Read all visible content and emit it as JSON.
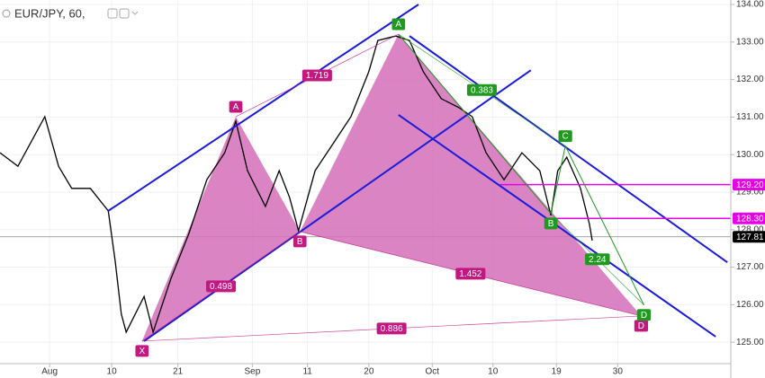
{
  "chart_data": {
    "type": "line",
    "title": "EUR/JPY, 60,",
    "xlim": [
      0,
      106
    ],
    "ylim": [
      124.43,
      134.12
    ],
    "xticks": [
      {
        "value": 7.2,
        "label": "Aug"
      },
      {
        "value": 16.2,
        "label": "10"
      },
      {
        "value": 25.8,
        "label": "21"
      },
      {
        "value": 36.6,
        "label": "Sep"
      },
      {
        "value": 44.6,
        "label": "11"
      },
      {
        "value": 53.5,
        "label": "20"
      },
      {
        "value": 62.7,
        "label": "Oct"
      },
      {
        "value": 71.5,
        "label": "10"
      },
      {
        "value": 80.7,
        "label": "19"
      },
      {
        "value": 89.6,
        "label": "30"
      }
    ],
    "yticks": [
      {
        "value": 125,
        "label": "125.00"
      },
      {
        "value": 126,
        "label": "126.00"
      },
      {
        "value": 127,
        "label": "127.00"
      },
      {
        "value": 128,
        "label": "128.00"
      },
      {
        "value": 129,
        "label": "129.00"
      },
      {
        "value": 130,
        "label": "130.00"
      },
      {
        "value": 131,
        "label": "131.00"
      },
      {
        "value": 132,
        "label": "132.00"
      },
      {
        "value": 133,
        "label": "133.00"
      },
      {
        "value": 134,
        "label": "134.00"
      }
    ],
    "x": [
      0,
      2.6,
      6.5,
      8.5,
      10.4,
      13.1,
      15.7,
      16.7,
      17.6,
      18.3,
      20.9,
      22.2,
      24.8,
      27.4,
      30.0,
      32.6,
      34.2,
      35.9,
      38.5,
      40.5,
      42.0,
      43.3,
      45.7,
      48.3,
      50.9,
      53.5,
      54.8,
      57.4,
      59.4,
      61.4,
      64.0,
      66.6,
      68.5,
      70.5,
      73.1,
      75.7,
      78.3,
      79.9,
      80.9,
      82.2,
      84.2,
      85.5,
      85.9
    ],
    "series": [
      {
        "color": "#000000",
        "values": [
          130.05,
          129.69,
          131.01,
          129.69,
          129.1,
          129.1,
          128.5,
          127.18,
          125.75,
          125.27,
          126.22,
          125.27,
          126.7,
          127.9,
          129.33,
          130.05,
          130.89,
          129.57,
          128.62,
          129.57,
          128.86,
          127.97,
          129.57,
          130.29,
          131.01,
          132.21,
          133.04,
          133.16,
          133.04,
          132.21,
          131.49,
          131.25,
          131.01,
          130.05,
          129.33,
          130.05,
          129.57,
          128.38,
          129.57,
          129.93,
          129.1,
          128.14,
          127.71
        ]
      }
    ],
    "trend_lines": [
      {
        "color": "#1a1adb",
        "x": [
          15.7,
          60.7
        ],
        "y": [
          128.5,
          134.0
        ]
      },
      {
        "color": "#1a1adb",
        "x": [
          20.9,
          77.0
        ],
        "y": [
          125.03,
          132.25
        ]
      },
      {
        "color": "#1a1adb",
        "x": [
          57.8,
          103.8
        ],
        "y": [
          131.06,
          125.15
        ]
      },
      {
        "color": "#1a1adb",
        "x": [
          59.4,
          105.5
        ],
        "y": [
          133.16,
          127.13
        ]
      }
    ],
    "patterns": [
      {
        "color": "#c2187f",
        "fill": "#d46fb8",
        "points": [
          {
            "label": "X",
            "x": 20.6,
            "y": 125.03
          },
          {
            "label": "A",
            "x": 34.2,
            "y": 131.01
          },
          {
            "label": "B",
            "x": 43.5,
            "y": 127.95
          },
          {
            "label": null,
            "x": 57.8,
            "y": 133.21
          },
          {
            "label": "D",
            "x": 93.0,
            "y": 125.7
          }
        ],
        "ratios": [
          0.498,
          1.719,
          1.452,
          0.886
        ]
      },
      {
        "color": "#1f9a1f",
        "fill": null,
        "points": [
          {
            "label": "A",
            "x": 57.8,
            "y": 133.21
          },
          {
            "label": "B",
            "x": 79.9,
            "y": 128.43
          },
          {
            "label": "C",
            "x": 82.0,
            "y": 130.23
          },
          {
            "label": "D",
            "x": 93.4,
            "y": 125.99
          }
        ],
        "ratios": [
          0.383,
          2.24
        ]
      }
    ],
    "levels": [
      {
        "value": 129.2,
        "label": "129.20",
        "color": "#e600e6",
        "x_from": 72.5
      },
      {
        "value": 128.3,
        "label": "128.30",
        "color": "#e600e6",
        "x_from": 79.6
      }
    ],
    "last_price": {
      "value": 127.81,
      "label": "127.81",
      "color": "#000000"
    }
  }
}
